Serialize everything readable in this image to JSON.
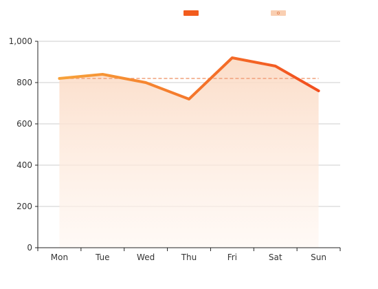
{
  "chart_data": {
    "type": "line",
    "categories": [
      "Mon",
      "Tue",
      "Wed",
      "Thu",
      "Fri",
      "Sat",
      "Sun"
    ],
    "series": [
      {
        "values": [
          820,
          840,
          800,
          720,
          920,
          880,
          760
        ]
      }
    ],
    "reference_line": {
      "value": 820,
      "style": "dashed"
    },
    "y_ticks": [
      "0",
      "200",
      "400",
      "600",
      "800",
      "1,000"
    ],
    "ylim": [
      0,
      1000
    ],
    "grid": true,
    "legend": {
      "placement": "top-center",
      "entries": 2
    },
    "colors": {
      "line_start": "#f7a23a",
      "line_end": "#f24e1e",
      "area_top": "#fbd9c2",
      "area_bottom": "#fff6f0",
      "reference": "#f0a07a",
      "legend_line": "#f25c1e",
      "legend_area": "#f9cfb2"
    }
  }
}
